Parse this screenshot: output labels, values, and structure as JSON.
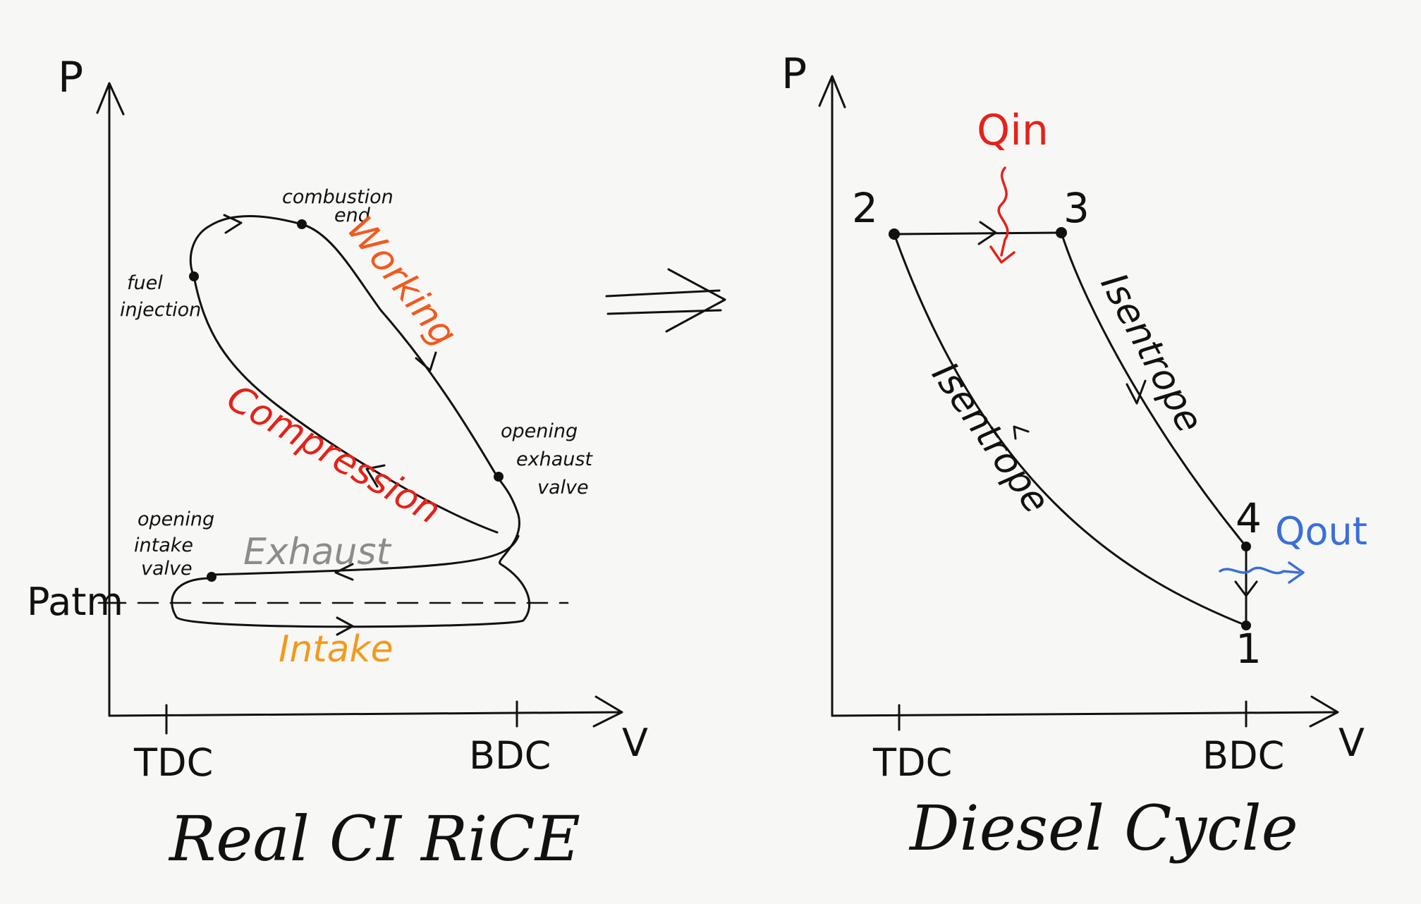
{
  "left": {
    "p_label": "P",
    "v_label": "V",
    "tdc_label": "TDC",
    "bdc_label": "BDC",
    "patm_label": "Patm",
    "fuel_injection": [
      "fuel",
      "injection"
    ],
    "combustion_end": [
      "combustion",
      "end"
    ],
    "opening_exhaust_valve": [
      "opening",
      "exhaust",
      "valve"
    ],
    "opening_intake_valve": [
      "opening",
      "intake",
      "valve"
    ],
    "working": "Working",
    "compression": "Compression",
    "exhaust": "Exhaust",
    "intake": "Intake",
    "title": "Real CI RiCE"
  },
  "right": {
    "p_label": "P",
    "v_label": "V",
    "tdc_label": "TDC",
    "bdc_label": "BDC",
    "point_1": "1",
    "point_2": "2",
    "point_3": "3",
    "point_4": "4",
    "qin": "Qin",
    "qout": "Qout",
    "isentrope_upper": "Isentrope",
    "isentrope_lower": "Isentrope",
    "title": "Diesel Cycle"
  },
  "colors": {
    "ink": "#111111",
    "working": "#f05a1e",
    "compression": "#e32219",
    "exhaust": "#8c8c8c",
    "intake": "#f29a1c",
    "qin": "#e3221b",
    "qout": "#3a6fd8"
  }
}
